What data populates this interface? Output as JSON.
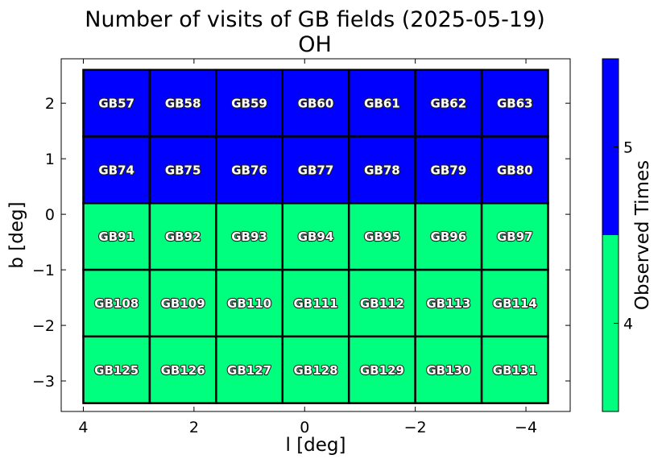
{
  "chart_data": {
    "type": "heatmap",
    "title": "Number of visits of GB fields (2025-05-19)",
    "subtitle": "OH",
    "xlabel": "l [deg]",
    "ylabel": "b [deg]",
    "xlim": [
      4.4,
      -4.8
    ],
    "ylim": [
      -3.55,
      2.8
    ],
    "x_ticks": [
      4,
      2,
      0,
      -2,
      -4
    ],
    "x_tick_labels": [
      "4",
      "2",
      "0",
      "−2",
      "−4"
    ],
    "y_ticks": [
      2,
      1,
      0,
      -1,
      -2,
      -3
    ],
    "y_tick_labels": [
      "2",
      "1",
      "0",
      "−1",
      "−2",
      "−3"
    ],
    "grid": false,
    "cell_width_deg": 1.2,
    "cell_height_deg": 1.2,
    "columns_l": [
      3.4,
      2.2,
      1.0,
      -0.2,
      -1.4,
      -2.6,
      -3.8
    ],
    "rows_b": [
      2.0,
      0.8,
      -0.4,
      -1.6,
      -2.8
    ],
    "fields": [
      [
        "GB57",
        "GB58",
        "GB59",
        "GB60",
        "GB61",
        "GB62",
        "GB63"
      ],
      [
        "GB74",
        "GB75",
        "GB76",
        "GB77",
        "GB78",
        "GB79",
        "GB80"
      ],
      [
        "GB91",
        "GB92",
        "GB93",
        "GB94",
        "GB95",
        "GB96",
        "GB97"
      ],
      [
        "GB108",
        "GB109",
        "GB110",
        "GB111",
        "GB112",
        "GB113",
        "GB114"
      ],
      [
        "GB125",
        "GB126",
        "GB127",
        "GB128",
        "GB129",
        "GB130",
        "GB131"
      ]
    ],
    "observed_times": [
      [
        5,
        5,
        5,
        5,
        5,
        5,
        5
      ],
      [
        5,
        5,
        5,
        5,
        5,
        5,
        5
      ],
      [
        4,
        4,
        4,
        4,
        4,
        4,
        4
      ],
      [
        4,
        4,
        4,
        4,
        4,
        4,
        4
      ],
      [
        4,
        4,
        4,
        4,
        4,
        4,
        4
      ]
    ],
    "colorbar": {
      "label": "Observed Times",
      "range": [
        3.5,
        5.5
      ],
      "ticks": [
        4,
        5
      ],
      "tick_labels": [
        "4",
        "5"
      ],
      "colors": {
        "4": "#00ff7f",
        "5": "#0000ff"
      }
    }
  }
}
